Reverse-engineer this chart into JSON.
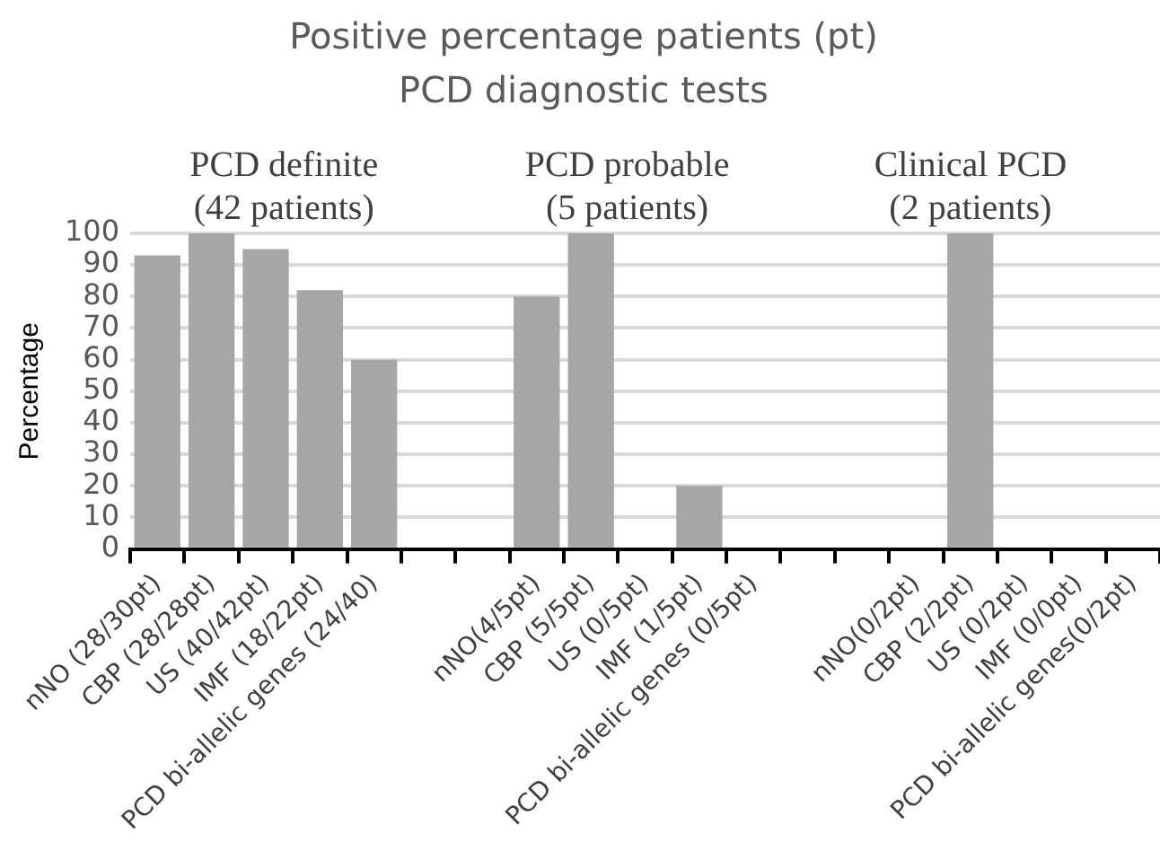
{
  "chart_data": {
    "type": "bar",
    "title": "Positive percentage patients (pt)",
    "subtitle": "PCD diagnostic tests",
    "ylabel": "Percentage",
    "categories": [
      "nNO (28/30pt)",
      "CBP (28/28pt)",
      "US (40/42pt)",
      "IMF (18/22pt)",
      "PCD bi-allelic genes (24/40)",
      null,
      null,
      "nNO(4/5pt)",
      "CBP (5/5pt)",
      "US (0/5pt)",
      "IMF (1/5pt)",
      "PCD bi-allelic genes (0/5pt)",
      null,
      null,
      "nNO(0/2pt)",
      "CBP (2/2pt)",
      "US (0/2pt)",
      "IMF (0/0pt)",
      "PCD bi-allelic genes(0/2pt)"
    ],
    "values": [
      93,
      100,
      95,
      82,
      60,
      null,
      null,
      80,
      100,
      0,
      20,
      0,
      null,
      null,
      0,
      100,
      0,
      0,
      0
    ],
    "color": "#a6a6a6",
    "ylim": [
      0,
      100
    ],
    "yticks": [
      0,
      10,
      20,
      30,
      40,
      50,
      60,
      70,
      80,
      90,
      100
    ],
    "grid": "y",
    "legend": false,
    "annotations": [
      "PCD definite\n(42 patients)",
      "PCD probable\n(5 patients)",
      "Clinical PCD\n(2 patients)"
    ]
  }
}
